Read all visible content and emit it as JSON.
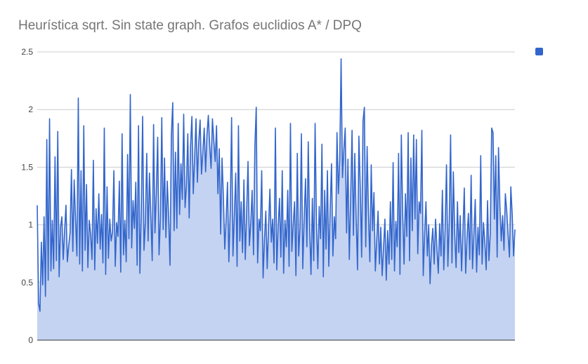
{
  "title": "Heurística sqrt. Sin state graph. Grafos euclidios A* / DPQ",
  "colors": {
    "line": "#3366cc",
    "area": "#c4d3f1",
    "grid": "#cccccc",
    "axis": "#333333"
  },
  "legend": {
    "position": "right",
    "entries": [
      {
        "color": "#3366cc",
        "label": ""
      }
    ]
  },
  "chart_data": {
    "type": "area",
    "title": "Heurística sqrt. Sin state graph. Grafos euclidios A* / DPQ",
    "xlabel": "",
    "ylabel": "",
    "ylim": [
      0,
      2.5
    ],
    "yticks": [
      "0",
      "0.5",
      "1",
      "1.5",
      "2",
      "2.5"
    ],
    "grid": true,
    "legend": "right",
    "series": [
      {
        "name": "",
        "color": "#3366cc",
        "values": [
          1.17,
          0.32,
          0.25,
          0.85,
          0.48,
          1.07,
          0.38,
          1.74,
          0.52,
          1.92,
          0.6,
          1.04,
          0.62,
          1.59,
          0.69,
          1.81,
          0.55,
          0.98,
          1.07,
          0.7,
          0.95,
          1.17,
          0.68,
          0.82,
          0.93,
          1.48,
          0.77,
          1.39,
          1.05,
          0.73,
          2.1,
          0.66,
          1.47,
          0.6,
          1.86,
          0.78,
          1.35,
          0.63,
          1.04,
          0.92,
          0.7,
          1.56,
          0.61,
          1.14,
          0.84,
          1.27,
          0.79,
          1.09,
          0.67,
          1.84,
          0.57,
          1.33,
          0.71,
          1.05,
          0.86,
          0.94,
          1.47,
          0.64,
          1.02,
          0.9,
          1.38,
          0.59,
          1.79,
          0.74,
          1.04,
          0.68,
          1.61,
          0.88,
          2.13,
          0.8,
          1.21,
          0.97,
          1.37,
          0.65,
          1.86,
          0.58,
          1.12,
          1.94,
          0.78,
          1.02,
          1.62,
          0.86,
          1.45,
          1.08,
          0.69,
          1.87,
          0.93,
          1.28,
          1.76,
          0.74,
          1.06,
          1.93,
          0.96,
          1.58,
          0.89,
          1.38,
          1.07,
          0.65,
          1.78,
          2.06,
          0.95,
          1.63,
          0.97,
          1.88,
          1.09,
          1.53,
          1.22,
          1.96,
          1.15,
          1.34,
          1.79,
          1.06,
          1.68,
          1.94,
          1.27,
          1.58,
          1.92,
          1.37,
          1.72,
          1.91,
          1.44,
          1.63,
          1.84,
          1.46,
          1.78,
          1.95,
          1.69,
          1.49,
          1.92,
          1.73,
          1.55,
          1.86,
          1.27,
          1.66,
          0.92,
          1.58,
          1.24,
          0.79,
          1.04,
          1.37,
          0.68,
          1.12,
          1.93,
          0.73,
          1.08,
          1.45,
          0.64,
          1.86,
          0.86,
          1.2,
          0.76,
          1.39,
          0.7,
          1.12,
          1.55,
          0.82,
          1.01,
          1.3,
          0.74,
          1.68,
          2.02,
          0.67,
          1.05,
          0.95,
          1.47,
          0.54,
          0.87,
          1.12,
          0.62,
          0.99,
          1.31,
          0.85,
          1.05,
          0.67,
          1.84,
          0.61,
          0.98,
          1.23,
          0.72,
          1.47,
          0.58,
          1.04,
          0.81,
          1.3,
          0.64,
          1.88,
          0.77,
          1.0,
          1.2,
          0.56,
          1.62,
          0.73,
          0.98,
          1.79,
          0.62,
          1.05,
          1.4,
          0.81,
          1.72,
          0.98,
          0.57,
          1.23,
          0.69,
          1.88,
          1.01,
          0.62,
          1.16,
          0.88,
          1.7,
          0.55,
          1.3,
          0.79,
          1.47,
          0.64,
          1.12,
          1.53,
          0.73,
          1.07,
          0.88,
          1.8,
          1.27,
          1.56,
          2.44,
          1.41,
          1.65,
          1.84,
          0.93,
          1.57,
          0.7,
          1.25,
          1.82,
          0.91,
          1.62,
          1.06,
          0.61,
          1.77,
          1.32,
          0.72,
          1.9,
          2.02,
          0.81,
          1.68,
          1.1,
          0.68,
          1.52,
          0.95,
          1.28,
          0.6,
          0.86,
          1.12,
          0.66,
          0.98,
          0.56,
          0.8,
          1.05,
          0.52,
          0.95,
          0.66,
          1.2,
          0.7,
          1.54,
          0.6,
          1.03,
          0.81,
          1.62,
          0.57,
          1.78,
          1.09,
          0.66,
          1.27,
          0.9,
          1.8,
          0.69,
          1.58,
          0.95,
          1.78,
          1.05,
          1.74,
          0.75,
          1.2,
          1.1,
          1.82,
          0.56,
          0.91,
          1.2,
          0.73,
          1.0,
          0.49,
          0.82,
          0.97,
          0.66,
          1.05,
          0.8,
          0.58,
          1.01,
          0.73,
          1.3,
          0.61,
          0.96,
          1.52,
          0.64,
          1.02,
          1.78,
          0.67,
          1.46,
          0.92,
          0.63,
          1.2,
          0.76,
          1.08,
          0.6,
          0.94,
          1.32,
          0.58,
          0.89,
          1.1,
          0.7,
          1.43,
          0.62,
          0.92,
          1.22,
          0.59,
          0.98,
          0.74,
          1.6,
          0.66,
          1.02,
          0.85,
          0.61,
          1.21,
          0.69,
          0.93,
          1.84,
          1.8,
          1.05,
          1.6,
          0.72,
          1.67,
          1.17,
          0.86,
          1.08,
          0.78,
          1.27,
          1.12,
          0.92,
          0.72,
          1.33,
          1.09,
          0.73,
          0.96
        ]
      }
    ]
  }
}
